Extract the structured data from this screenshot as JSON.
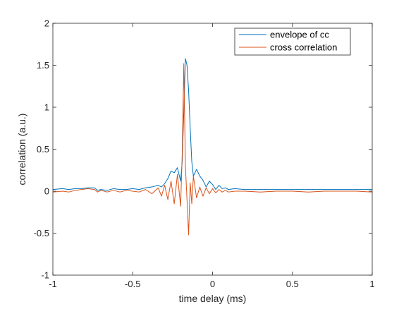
{
  "chart_data": {
    "type": "line",
    "title": "",
    "xlabel": "time delay (ms)",
    "ylabel": "correlation (a.u.)",
    "xlim": [
      -1,
      1
    ],
    "ylim": [
      -1,
      2
    ],
    "xticks": [
      -1,
      -0.5,
      0,
      0.5,
      1
    ],
    "xtick_labels": [
      "-1",
      "-0.5",
      "0",
      "0.5",
      "1"
    ],
    "yticks": [
      -1,
      -0.5,
      0,
      0.5,
      1,
      1.5,
      2
    ],
    "ytick_labels": [
      "-1",
      "-0.5",
      "0",
      "0.5",
      "1",
      "1.5",
      "2"
    ],
    "grid": false,
    "legend_position": "top-right",
    "series": [
      {
        "name": "envelope of cc",
        "color": "#0072BD",
        "x": [
          -1,
          -0.94,
          -0.9,
          -0.86,
          -0.82,
          -0.78,
          -0.74,
          -0.72,
          -0.7,
          -0.66,
          -0.62,
          -0.58,
          -0.54,
          -0.5,
          -0.46,
          -0.42,
          -0.38,
          -0.34,
          -0.32,
          -0.3,
          -0.28,
          -0.26,
          -0.24,
          -0.22,
          -0.2,
          -0.19,
          -0.18,
          -0.17,
          -0.16,
          -0.15,
          -0.14,
          -0.13,
          -0.12,
          -0.1,
          -0.08,
          -0.06,
          -0.04,
          -0.02,
          0,
          0.02,
          0.04,
          0.06,
          0.08,
          0.1,
          0.14,
          0.2,
          0.3,
          0.4,
          0.5,
          0.6,
          0.7,
          0.8,
          0.9,
          1
        ],
        "y": [
          0.02,
          0.03,
          0.02,
          0.03,
          0.03,
          0.04,
          0.04,
          0.01,
          0.02,
          0.01,
          0.03,
          0.02,
          0.02,
          0.03,
          0.02,
          0.04,
          0.05,
          0.07,
          0.05,
          0.09,
          0.15,
          0.24,
          0.22,
          0.28,
          0.12,
          0.35,
          0.95,
          1.58,
          1.5,
          1.2,
          0.75,
          0.35,
          0.18,
          0.26,
          0.18,
          0.13,
          0.05,
          0.12,
          0.08,
          0.02,
          0.07,
          0.03,
          0.04,
          0.02,
          0.03,
          0.02,
          0.02,
          0.02,
          0.02,
          0.02,
          0.02,
          0.02,
          0.02,
          0.02
        ]
      },
      {
        "name": "cross correlation",
        "color": "#D95319",
        "x": [
          -1,
          -0.94,
          -0.9,
          -0.86,
          -0.82,
          -0.78,
          -0.74,
          -0.72,
          -0.7,
          -0.66,
          -0.62,
          -0.58,
          -0.54,
          -0.5,
          -0.46,
          -0.42,
          -0.38,
          -0.34,
          -0.32,
          -0.3,
          -0.28,
          -0.26,
          -0.24,
          -0.22,
          -0.2,
          -0.19,
          -0.18,
          -0.17,
          -0.16,
          -0.15,
          -0.14,
          -0.13,
          -0.12,
          -0.1,
          -0.08,
          -0.06,
          -0.04,
          -0.02,
          0,
          0.02,
          0.04,
          0.06,
          0.08,
          0.1,
          0.14,
          0.2,
          0.3,
          0.4,
          0.5,
          0.6,
          0.7,
          0.8,
          0.9,
          1
        ],
        "y": [
          -0.01,
          0.0,
          -0.01,
          0.01,
          0.02,
          0.03,
          0.02,
          -0.01,
          0.01,
          -0.01,
          0.01,
          -0.01,
          0.01,
          0.0,
          -0.01,
          0.02,
          -0.03,
          0.04,
          -0.06,
          0.07,
          -0.1,
          0.12,
          -0.15,
          0.2,
          -0.18,
          0.45,
          1.52,
          0.3,
          -0.1,
          -0.52,
          0.1,
          -0.15,
          0.18,
          -0.08,
          0.05,
          -0.06,
          0.04,
          -0.03,
          0.03,
          -0.02,
          0.02,
          -0.01,
          0.01,
          -0.01,
          0.0,
          0.0,
          -0.01,
          0.0,
          0.0,
          -0.01,
          0.0,
          0.0,
          0.0,
          -0.01
        ]
      }
    ]
  }
}
